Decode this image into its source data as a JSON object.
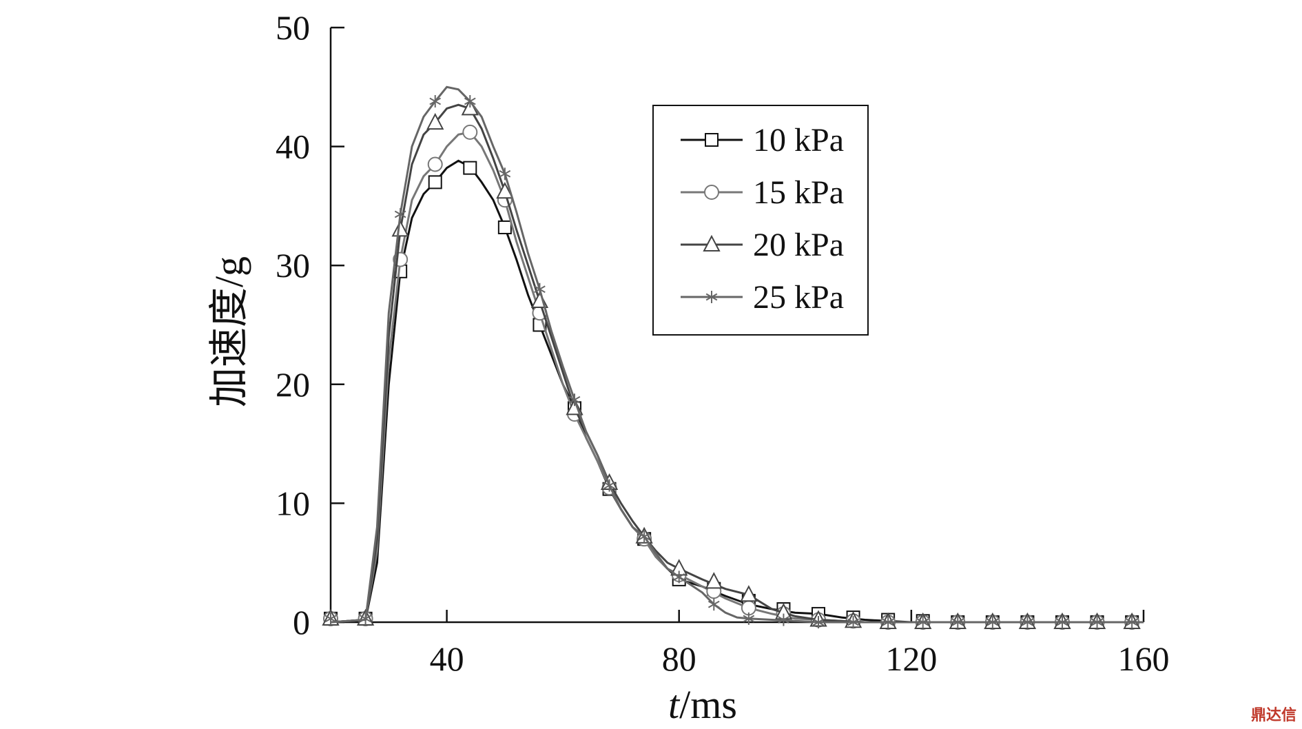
{
  "chart_data": {
    "type": "line",
    "xlabel_italic": "t",
    "xlabel_rest": "/ms",
    "ylabel": "加速度/g",
    "xlim": [
      20,
      160
    ],
    "ylim": [
      0,
      50
    ],
    "xticks": [
      40,
      80,
      120,
      160
    ],
    "yticks": [
      0,
      10,
      20,
      30,
      40,
      50
    ],
    "grid": false,
    "legend_position": "top-right",
    "series": [
      {
        "name": "10 kPa",
        "color": "#111111",
        "marker": "square",
        "x": [
          20,
          26,
          28,
          30,
          32,
          34,
          36,
          38,
          40,
          42,
          44,
          46,
          48,
          50,
          52,
          54,
          56,
          58,
          60,
          62,
          64,
          66,
          68,
          70,
          72,
          74,
          76,
          78,
          80,
          84,
          88,
          92,
          96,
          100,
          104,
          108,
          112,
          116,
          120,
          130,
          140,
          150,
          160
        ],
        "y": [
          0,
          0.2,
          5,
          20,
          29.5,
          34,
          36,
          37,
          38.2,
          38.8,
          38.3,
          37,
          35.5,
          33.2,
          30.5,
          27.5,
          25,
          22.5,
          20,
          18,
          15.5,
          13.5,
          11.2,
          9.5,
          8,
          7,
          5.5,
          4.5,
          3.6,
          3,
          2.2,
          1.5,
          1.1,
          0.8,
          0.7,
          0.4,
          0.2,
          0.1,
          0,
          0,
          0,
          0,
          0
        ],
        "marker_x": [
          20,
          26,
          32,
          38,
          44,
          50,
          56,
          62,
          68,
          74,
          80,
          86,
          92,
          98,
          104,
          110,
          116,
          122,
          128,
          134,
          140,
          146,
          152,
          158
        ],
        "marker_y": [
          0.3,
          0.3,
          29.5,
          37,
          38.2,
          33.2,
          25,
          18,
          11.2,
          7,
          3.6,
          2.8,
          1.8,
          1.1,
          0.7,
          0.4,
          0.2,
          0.1,
          0,
          0,
          0,
          0,
          0,
          0
        ]
      },
      {
        "name": "15 kPa",
        "color": "#777777",
        "marker": "circle",
        "x": [
          20,
          26,
          28,
          30,
          32,
          34,
          36,
          38,
          40,
          42,
          44,
          46,
          48,
          50,
          52,
          54,
          56,
          58,
          60,
          62,
          64,
          66,
          68,
          70,
          72,
          74,
          76,
          78,
          80,
          84,
          88,
          92,
          96,
          100,
          104,
          108,
          112,
          116,
          120,
          130,
          140,
          150,
          160
        ],
        "y": [
          0,
          0.2,
          6,
          22,
          30.5,
          35.5,
          37.5,
          38.5,
          40,
          41,
          41.2,
          40,
          38,
          35.5,
          32,
          29,
          26,
          23,
          20,
          17.5,
          15.5,
          13.5,
          11.3,
          9.5,
          8,
          7,
          5.5,
          4.5,
          4,
          3,
          2,
          1.2,
          0.7,
          0.3,
          0.2,
          0.1,
          0,
          0,
          0,
          0,
          0,
          0,
          0
        ],
        "marker_x": [
          20,
          26,
          32,
          38,
          44,
          50,
          56,
          62,
          68,
          74,
          80,
          86,
          92,
          98,
          104,
          110,
          116,
          122,
          128,
          134,
          140,
          146,
          152,
          158
        ],
        "marker_y": [
          0.3,
          0.3,
          30.5,
          38.5,
          41.2,
          35.5,
          26,
          17.5,
          11.3,
          7,
          4,
          2.6,
          1.2,
          0.7,
          0.2,
          0.1,
          0,
          0,
          0,
          0,
          0,
          0,
          0,
          0
        ]
      },
      {
        "name": "20 kPa",
        "color": "#444444",
        "marker": "triangle",
        "x": [
          20,
          26,
          28,
          30,
          32,
          34,
          36,
          38,
          40,
          42,
          44,
          46,
          48,
          50,
          52,
          54,
          56,
          58,
          60,
          62,
          64,
          66,
          68,
          70,
          72,
          74,
          76,
          78,
          80,
          84,
          88,
          92,
          96,
          100,
          104,
          108,
          112,
          116,
          120,
          130,
          140,
          150,
          160
        ],
        "y": [
          0,
          0.2,
          7,
          24,
          33,
          38.5,
          41,
          42,
          43.2,
          43.5,
          43.2,
          41.5,
          39,
          36.2,
          33,
          30,
          27,
          24,
          21,
          18,
          16,
          14,
          11.7,
          10,
          8.5,
          7.2,
          6,
          5,
          4.5,
          3.6,
          2.8,
          2.3,
          1.1,
          0.5,
          0.2,
          0.1,
          0,
          0,
          0,
          0,
          0,
          0,
          0
        ],
        "marker_x": [
          20,
          26,
          32,
          38,
          44,
          50,
          56,
          62,
          68,
          74,
          80,
          86,
          92,
          98,
          104,
          110,
          116,
          122,
          128,
          134,
          140,
          146,
          152,
          158
        ],
        "marker_y": [
          0.3,
          0.3,
          33,
          42,
          43.2,
          36.2,
          27,
          18,
          11.7,
          7.2,
          4.5,
          3.4,
          2.3,
          0.8,
          0.2,
          0.1,
          0,
          0,
          0,
          0,
          0,
          0,
          0,
          0
        ]
      },
      {
        "name": "25 kPa",
        "color": "#666666",
        "marker": "asterisk",
        "x": [
          20,
          26,
          28,
          30,
          32,
          34,
          36,
          38,
          40,
          42,
          44,
          46,
          48,
          50,
          52,
          54,
          56,
          58,
          60,
          62,
          64,
          66,
          68,
          70,
          72,
          74,
          76,
          78,
          80,
          84,
          86,
          88,
          90,
          92,
          96,
          100,
          104,
          108,
          112,
          116,
          120,
          130,
          140,
          150,
          160
        ],
        "y": [
          0,
          0.2,
          8,
          26,
          34.3,
          40,
          42.5,
          43.8,
          45,
          44.8,
          43.8,
          42.5,
          40,
          37.7,
          34.5,
          31,
          28,
          24.5,
          21.5,
          18.7,
          16,
          14,
          11.5,
          9.5,
          8,
          7.2,
          5.8,
          4.5,
          3.8,
          2.5,
          1.5,
          0.8,
          0.4,
          0.3,
          0.2,
          0.1,
          0,
          0,
          0,
          0,
          0,
          0,
          0,
          0,
          0
        ],
        "marker_x": [
          20,
          26,
          32,
          38,
          44,
          50,
          56,
          62,
          68,
          74,
          80,
          86,
          92,
          98,
          104,
          110,
          116,
          122,
          128,
          134,
          140,
          146,
          152,
          158
        ],
        "marker_y": [
          0.3,
          0.3,
          34.3,
          43.8,
          43.8,
          37.7,
          28,
          18.7,
          11.5,
          7.2,
          3.8,
          1.5,
          0.3,
          0.2,
          0,
          0,
          0,
          0,
          0,
          0,
          0,
          0,
          0,
          0
        ]
      }
    ]
  },
  "watermark": "鼎达信"
}
